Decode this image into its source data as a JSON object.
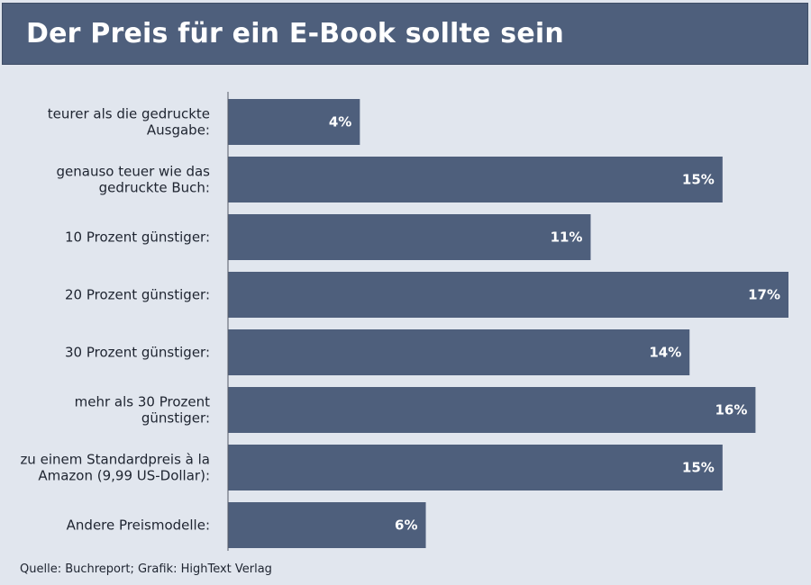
{
  "header": {
    "title": "Der Preis für ein E-Book sollte sein"
  },
  "chart_data": {
    "type": "bar",
    "orientation": "horizontal",
    "title": "Der Preis für ein E-Book sollte sein",
    "categories": [
      [
        "teurer als die gedruckte",
        "Ausgabe:"
      ],
      [
        "genauso teuer wie das",
        "gedruckte Buch:"
      ],
      [
        "10 Prozent günstiger:"
      ],
      [
        "20 Prozent günstiger:"
      ],
      [
        "30 Prozent günstiger:"
      ],
      [
        "mehr als 30 Prozent",
        "günstiger:"
      ],
      [
        "zu einem Standardpreis à la",
        "Amazon (9,99 US-Dollar):"
      ],
      [
        "Andere Preismodelle:"
      ]
    ],
    "values": [
      4,
      15,
      11,
      17,
      14,
      16,
      15,
      6
    ],
    "value_labels": [
      "4%",
      "15%",
      "11%",
      "17%",
      "14%",
      "16%",
      "15%",
      "6%"
    ],
    "unit": "%",
    "xlim": [
      0,
      17
    ],
    "grid": false,
    "legend": "none",
    "bar_color": "#4e5f7c"
  },
  "footer": {
    "source": "Quelle: Buchreport; Grafik: HighText Verlag"
  }
}
